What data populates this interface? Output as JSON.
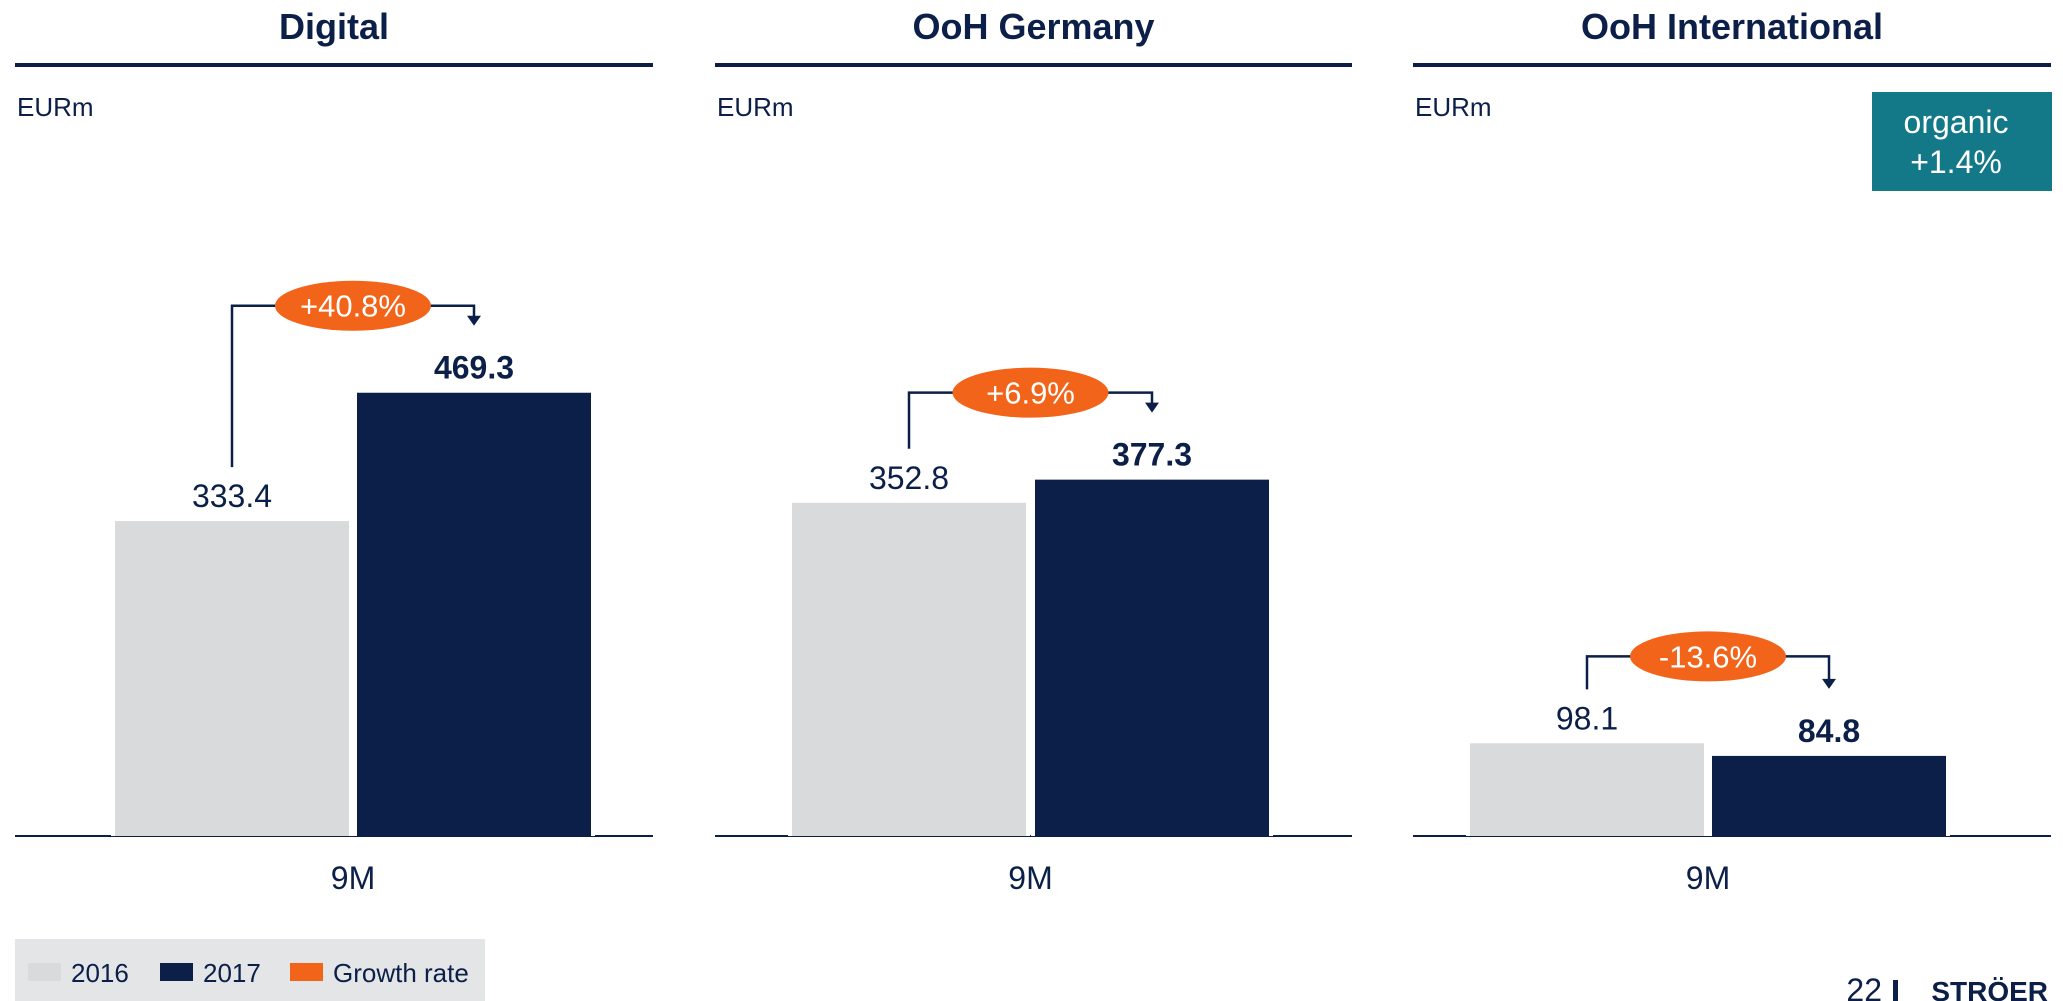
{
  "chart_data": [
    {
      "type": "bar",
      "title": "Digital",
      "unit": "EURm",
      "categories": [
        "9M"
      ],
      "series": [
        {
          "name": "2016",
          "values": [
            333.4
          ],
          "labels": [
            "333.4"
          ]
        },
        {
          "name": "2017",
          "values": [
            469.3
          ],
          "labels": [
            "469.3"
          ]
        }
      ],
      "growth_rate": "+40.8%",
      "ylim": [
        0,
        500
      ]
    },
    {
      "type": "bar",
      "title": "OoH Germany",
      "unit": "EURm",
      "categories": [
        "9M"
      ],
      "series": [
        {
          "name": "2016",
          "values": [
            352.8
          ],
          "labels": [
            "352.8"
          ]
        },
        {
          "name": "2017",
          "values": [
            377.3
          ],
          "labels": [
            "377.3"
          ]
        }
      ],
      "growth_rate": "+6.9%",
      "ylim": [
        0,
        500
      ]
    },
    {
      "type": "bar",
      "title": "OoH International",
      "unit": "EURm",
      "categories": [
        "9M"
      ],
      "series": [
        {
          "name": "2016",
          "values": [
            98.1
          ],
          "labels": [
            "98.1"
          ]
        },
        {
          "name": "2017",
          "values": [
            84.8
          ],
          "labels": [
            "84.8"
          ]
        }
      ],
      "growth_rate": "-13.6%",
      "note": [
        "organic",
        "+1.4%"
      ],
      "ylim": [
        0,
        500
      ]
    }
  ],
  "legend": [
    {
      "label": "2016",
      "color": "#d9dadb"
    },
    {
      "label": "2017",
      "color": "#0b1f48"
    },
    {
      "label": "Growth rate",
      "color": "#f26419"
    }
  ],
  "colors": {
    "prev": "#d9dadb",
    "curr": "#0b1f48",
    "growth": "#f26419",
    "note_bg": "#137888",
    "text": "#0b1f48"
  },
  "footer": {
    "page_number": "22",
    "brand": "STRÖER"
  }
}
